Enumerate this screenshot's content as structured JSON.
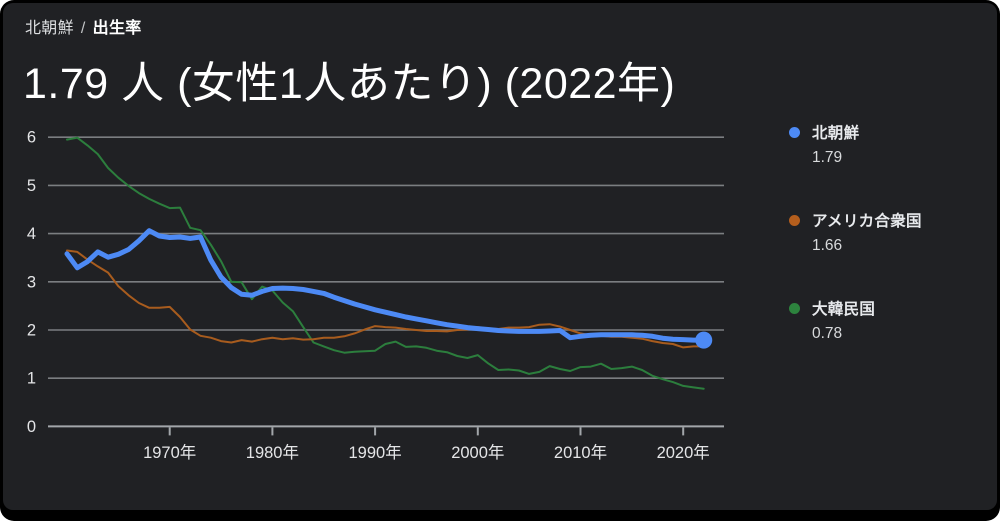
{
  "breadcrumb": {
    "entity": "北朝鮮",
    "separator": "/",
    "attribute": "出生率"
  },
  "title": "1.79 人 (女性1人あたり) (2022年)",
  "legend": {
    "items": [
      {
        "name": "北朝鮮",
        "value": "1.79",
        "color": "#4d8af5"
      },
      {
        "name": "アメリカ合衆国",
        "value": "1.66",
        "color": "#b45e1d"
      },
      {
        "name": "大韓民国",
        "value": "0.78",
        "color": "#2d833e"
      }
    ]
  },
  "chart_data": {
    "type": "line",
    "title": "出生率 (女性1人あたり)",
    "xlabel": "",
    "ylabel": "",
    "ylim": [
      0,
      6
    ],
    "grid": true,
    "legend_position": "right",
    "yticks": [
      0,
      1,
      2,
      3,
      4,
      5,
      6
    ],
    "xticks": [
      {
        "year": 1970,
        "label": "1970年"
      },
      {
        "year": 1980,
        "label": "1980年"
      },
      {
        "year": 1990,
        "label": "1990年"
      },
      {
        "year": 2000,
        "label": "2000年"
      },
      {
        "year": 2010,
        "label": "2010年"
      },
      {
        "year": 2020,
        "label": "2020年"
      }
    ],
    "x": [
      1960,
      1961,
      1962,
      1963,
      1964,
      1965,
      1966,
      1967,
      1968,
      1969,
      1970,
      1971,
      1972,
      1973,
      1974,
      1975,
      1976,
      1977,
      1978,
      1979,
      1980,
      1981,
      1982,
      1983,
      1984,
      1985,
      1986,
      1987,
      1988,
      1989,
      1990,
      1991,
      1992,
      1993,
      1994,
      1995,
      1996,
      1997,
      1998,
      1999,
      2000,
      2001,
      2002,
      2003,
      2004,
      2005,
      2006,
      2007,
      2008,
      2009,
      2010,
      2011,
      2012,
      2013,
      2014,
      2015,
      2016,
      2017,
      2018,
      2019,
      2020,
      2021,
      2022
    ],
    "series": [
      {
        "name": "北朝鮮",
        "color": "#4d8af5",
        "width": 5,
        "end_dot": true,
        "values": [
          3.58,
          3.29,
          3.42,
          3.62,
          3.51,
          3.57,
          3.67,
          3.85,
          4.06,
          3.95,
          3.92,
          3.93,
          3.9,
          3.93,
          3.45,
          3.1,
          2.88,
          2.74,
          2.72,
          2.8,
          2.86,
          2.87,
          2.86,
          2.84,
          2.8,
          2.76,
          2.68,
          2.61,
          2.54,
          2.48,
          2.42,
          2.37,
          2.32,
          2.27,
          2.23,
          2.19,
          2.15,
          2.11,
          2.08,
          2.05,
          2.03,
          2.01,
          1.99,
          1.98,
          1.97,
          1.97,
          1.97,
          1.98,
          1.99,
          1.84,
          1.87,
          1.89,
          1.9,
          1.9,
          1.9,
          1.9,
          1.89,
          1.87,
          1.83,
          1.81,
          1.8,
          1.79,
          1.79
        ]
      },
      {
        "name": "アメリカ合衆国",
        "color": "#a85c1e",
        "width": 2,
        "end_dot": false,
        "values": [
          3.65,
          3.62,
          3.46,
          3.32,
          3.19,
          2.91,
          2.72,
          2.56,
          2.46,
          2.46,
          2.48,
          2.27,
          2.01,
          1.88,
          1.84,
          1.77,
          1.74,
          1.79,
          1.76,
          1.81,
          1.84,
          1.81,
          1.83,
          1.8,
          1.81,
          1.84,
          1.84,
          1.87,
          1.93,
          2.01,
          2.08,
          2.06,
          2.05,
          2.02,
          2.0,
          1.98,
          1.98,
          1.97,
          2.0,
          2.01,
          2.06,
          2.03,
          2.02,
          2.05,
          2.05,
          2.06,
          2.11,
          2.12,
          2.07,
          2.0,
          1.93,
          1.89,
          1.88,
          1.86,
          1.86,
          1.84,
          1.82,
          1.77,
          1.73,
          1.71,
          1.64,
          1.66,
          1.66
        ]
      },
      {
        "name": "大韓民国",
        "color": "#2c7e3d",
        "width": 2,
        "end_dot": false,
        "values": [
          5.95,
          5.99,
          5.83,
          5.65,
          5.36,
          5.16,
          4.99,
          4.84,
          4.72,
          4.62,
          4.53,
          4.54,
          4.12,
          4.07,
          3.77,
          3.43,
          3.0,
          2.99,
          2.64,
          2.9,
          2.82,
          2.57,
          2.39,
          2.06,
          1.74,
          1.66,
          1.58,
          1.53,
          1.55,
          1.56,
          1.57,
          1.71,
          1.76,
          1.65,
          1.66,
          1.63,
          1.57,
          1.54,
          1.46,
          1.42,
          1.48,
          1.31,
          1.17,
          1.18,
          1.16,
          1.09,
          1.13,
          1.25,
          1.19,
          1.15,
          1.23,
          1.24,
          1.3,
          1.19,
          1.21,
          1.24,
          1.17,
          1.05,
          0.98,
          0.92,
          0.84,
          0.81,
          0.78
        ]
      }
    ],
    "colors": {
      "background": "#202124",
      "gridline": "#7b7e81",
      "baseline": "#a2a6aa",
      "axis_text": "#e4e5e7"
    }
  }
}
